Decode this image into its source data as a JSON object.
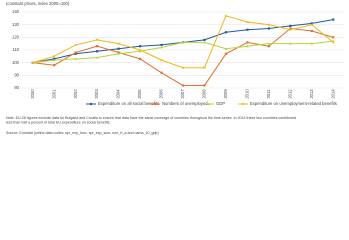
{
  "chart_data": {
    "type": "line",
    "title": "(constant prices, index 2000=100)",
    "categories": [
      "2000",
      "2001",
      "2002",
      "2003",
      "2004",
      "2005",
      "2006",
      "2007",
      "2008",
      "2009",
      "2010",
      "2011",
      "2012",
      "2013",
      "2014"
    ],
    "series": [
      {
        "name": "Expenditure on all social benefits",
        "color": "#1f5a9e",
        "marker": "square",
        "values": [
          100,
          103,
          107,
          109,
          111,
          113,
          114,
          116,
          118,
          124,
          126,
          127,
          129,
          131,
          134
        ]
      },
      {
        "name": "Numbers of unemployed",
        "color": "#e2702c",
        "marker": "square",
        "values": [
          100,
          98,
          108,
          113,
          108,
          103,
          92,
          82,
          82,
          107,
          116,
          113,
          127,
          125,
          120
        ]
      },
      {
        "name": "GDP",
        "color": "#b6d53a",
        "marker": "triangle",
        "values": [
          100,
          102,
          103,
          104,
          107,
          109,
          112,
          116,
          116,
          111,
          113,
          115,
          115,
          115,
          117
        ]
      },
      {
        "name": "Expenditure on unemployment-related benefits",
        "color": "#f2b619",
        "marker": "cross",
        "values": [
          100,
          105,
          114,
          118,
          115,
          110,
          102,
          96,
          96,
          137,
          132,
          130,
          126,
          130,
          116
        ]
      }
    ],
    "ylim": [
      80,
      140
    ],
    "yticks": [
      80,
      90,
      100,
      110,
      120,
      130,
      140
    ],
    "grid": true,
    "note": "Note: EU-28 figures exclude data for Bulgaria and Croatia to ensure that data have the same coverage of countries throughout the time-series. In 2014 these two countries contributed less than half a percent of total EU expenditure on social benefits.",
    "source": "Source: Eurostat (online data codes: spr_exp_func, spr_exp_sum, une_rt_a and nama_10_gdp)"
  }
}
